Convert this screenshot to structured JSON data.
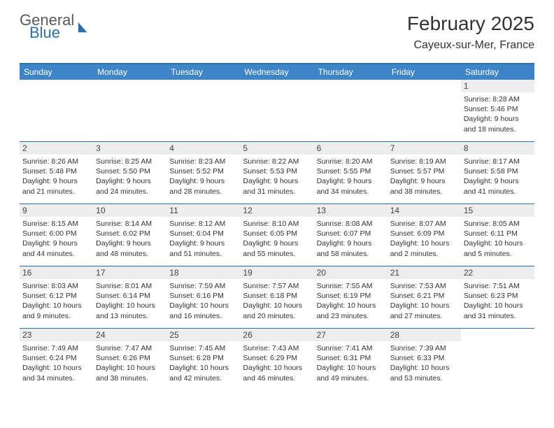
{
  "logo": {
    "general": "General",
    "blue": "Blue"
  },
  "title": "February 2025",
  "location": "Cayeux-sur-Mer, France",
  "colors": {
    "header_bar": "#3d85c6",
    "rule": "#2f6fa8",
    "daynum_bg": "#ededed",
    "text": "#333333"
  },
  "dow": [
    "Sunday",
    "Monday",
    "Tuesday",
    "Wednesday",
    "Thursday",
    "Friday",
    "Saturday"
  ],
  "weeks": [
    [
      {
        "n": "",
        "sr": "",
        "ss": "",
        "dl": ""
      },
      {
        "n": "",
        "sr": "",
        "ss": "",
        "dl": ""
      },
      {
        "n": "",
        "sr": "",
        "ss": "",
        "dl": ""
      },
      {
        "n": "",
        "sr": "",
        "ss": "",
        "dl": ""
      },
      {
        "n": "",
        "sr": "",
        "ss": "",
        "dl": ""
      },
      {
        "n": "",
        "sr": "",
        "ss": "",
        "dl": ""
      },
      {
        "n": "1",
        "sr": "Sunrise: 8:28 AM",
        "ss": "Sunset: 5:46 PM",
        "dl": "Daylight: 9 hours and 18 minutes."
      }
    ],
    [
      {
        "n": "2",
        "sr": "Sunrise: 8:26 AM",
        "ss": "Sunset: 5:48 PM",
        "dl": "Daylight: 9 hours and 21 minutes."
      },
      {
        "n": "3",
        "sr": "Sunrise: 8:25 AM",
        "ss": "Sunset: 5:50 PM",
        "dl": "Daylight: 9 hours and 24 minutes."
      },
      {
        "n": "4",
        "sr": "Sunrise: 8:23 AM",
        "ss": "Sunset: 5:52 PM",
        "dl": "Daylight: 9 hours and 28 minutes."
      },
      {
        "n": "5",
        "sr": "Sunrise: 8:22 AM",
        "ss": "Sunset: 5:53 PM",
        "dl": "Daylight: 9 hours and 31 minutes."
      },
      {
        "n": "6",
        "sr": "Sunrise: 8:20 AM",
        "ss": "Sunset: 5:55 PM",
        "dl": "Daylight: 9 hours and 34 minutes."
      },
      {
        "n": "7",
        "sr": "Sunrise: 8:19 AM",
        "ss": "Sunset: 5:57 PM",
        "dl": "Daylight: 9 hours and 38 minutes."
      },
      {
        "n": "8",
        "sr": "Sunrise: 8:17 AM",
        "ss": "Sunset: 5:58 PM",
        "dl": "Daylight: 9 hours and 41 minutes."
      }
    ],
    [
      {
        "n": "9",
        "sr": "Sunrise: 8:15 AM",
        "ss": "Sunset: 6:00 PM",
        "dl": "Daylight: 9 hours and 44 minutes."
      },
      {
        "n": "10",
        "sr": "Sunrise: 8:14 AM",
        "ss": "Sunset: 6:02 PM",
        "dl": "Daylight: 9 hours and 48 minutes."
      },
      {
        "n": "11",
        "sr": "Sunrise: 8:12 AM",
        "ss": "Sunset: 6:04 PM",
        "dl": "Daylight: 9 hours and 51 minutes."
      },
      {
        "n": "12",
        "sr": "Sunrise: 8:10 AM",
        "ss": "Sunset: 6:05 PM",
        "dl": "Daylight: 9 hours and 55 minutes."
      },
      {
        "n": "13",
        "sr": "Sunrise: 8:08 AM",
        "ss": "Sunset: 6:07 PM",
        "dl": "Daylight: 9 hours and 58 minutes."
      },
      {
        "n": "14",
        "sr": "Sunrise: 8:07 AM",
        "ss": "Sunset: 6:09 PM",
        "dl": "Daylight: 10 hours and 2 minutes."
      },
      {
        "n": "15",
        "sr": "Sunrise: 8:05 AM",
        "ss": "Sunset: 6:11 PM",
        "dl": "Daylight: 10 hours and 5 minutes."
      }
    ],
    [
      {
        "n": "16",
        "sr": "Sunrise: 8:03 AM",
        "ss": "Sunset: 6:12 PM",
        "dl": "Daylight: 10 hours and 9 minutes."
      },
      {
        "n": "17",
        "sr": "Sunrise: 8:01 AM",
        "ss": "Sunset: 6:14 PM",
        "dl": "Daylight: 10 hours and 13 minutes."
      },
      {
        "n": "18",
        "sr": "Sunrise: 7:59 AM",
        "ss": "Sunset: 6:16 PM",
        "dl": "Daylight: 10 hours and 16 minutes."
      },
      {
        "n": "19",
        "sr": "Sunrise: 7:57 AM",
        "ss": "Sunset: 6:18 PM",
        "dl": "Daylight: 10 hours and 20 minutes."
      },
      {
        "n": "20",
        "sr": "Sunrise: 7:55 AM",
        "ss": "Sunset: 6:19 PM",
        "dl": "Daylight: 10 hours and 23 minutes."
      },
      {
        "n": "21",
        "sr": "Sunrise: 7:53 AM",
        "ss": "Sunset: 6:21 PM",
        "dl": "Daylight: 10 hours and 27 minutes."
      },
      {
        "n": "22",
        "sr": "Sunrise: 7:51 AM",
        "ss": "Sunset: 6:23 PM",
        "dl": "Daylight: 10 hours and 31 minutes."
      }
    ],
    [
      {
        "n": "23",
        "sr": "Sunrise: 7:49 AM",
        "ss": "Sunset: 6:24 PM",
        "dl": "Daylight: 10 hours and 34 minutes."
      },
      {
        "n": "24",
        "sr": "Sunrise: 7:47 AM",
        "ss": "Sunset: 6:26 PM",
        "dl": "Daylight: 10 hours and 38 minutes."
      },
      {
        "n": "25",
        "sr": "Sunrise: 7:45 AM",
        "ss": "Sunset: 6:28 PM",
        "dl": "Daylight: 10 hours and 42 minutes."
      },
      {
        "n": "26",
        "sr": "Sunrise: 7:43 AM",
        "ss": "Sunset: 6:29 PM",
        "dl": "Daylight: 10 hours and 46 minutes."
      },
      {
        "n": "27",
        "sr": "Sunrise: 7:41 AM",
        "ss": "Sunset: 6:31 PM",
        "dl": "Daylight: 10 hours and 49 minutes."
      },
      {
        "n": "28",
        "sr": "Sunrise: 7:39 AM",
        "ss": "Sunset: 6:33 PM",
        "dl": "Daylight: 10 hours and 53 minutes."
      },
      {
        "n": "",
        "sr": "",
        "ss": "",
        "dl": ""
      }
    ]
  ]
}
